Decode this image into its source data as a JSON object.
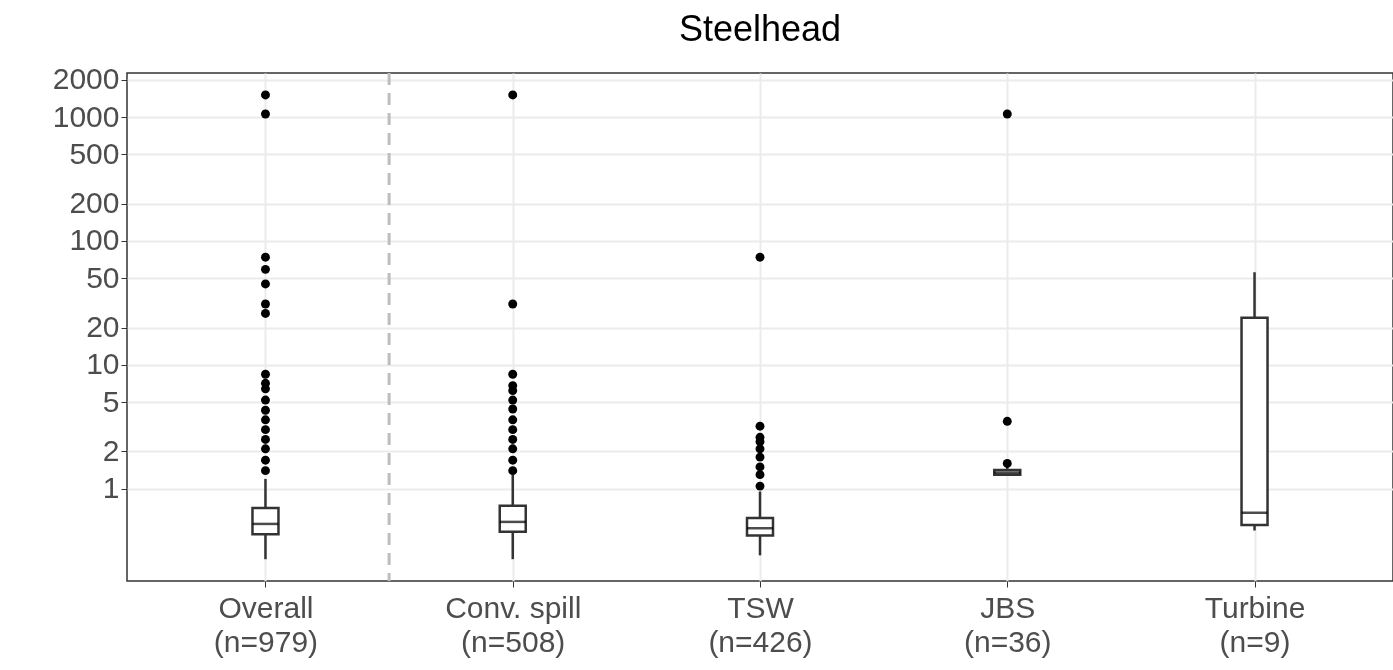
{
  "chart_data": {
    "type": "box",
    "title": "Steelhead",
    "categories": [
      "Overall\n(n=979)",
      "Conv. spill\n(n=508)",
      "TSW\n(n=426)",
      "JBS\n(n=36)",
      "Turbine\n(n=9)"
    ],
    "boxes": [
      {
        "low": 0.27,
        "q1": 0.43,
        "median": 0.52,
        "q3": 0.7,
        "high": 1.2,
        "outliers": [
          1510,
          1060,
          74,
          59,
          45,
          31,
          26,
          8.4,
          7.1,
          6.4,
          5.2,
          4.3,
          3.6,
          3.0,
          2.5,
          2.1,
          1.7,
          1.4
        ]
      },
      {
        "low": 0.27,
        "q1": 0.45,
        "median": 0.54,
        "q3": 0.73,
        "high": 1.3,
        "outliers": [
          1510,
          31,
          8.4,
          6.8,
          6.2,
          5.2,
          4.4,
          3.6,
          3.0,
          2.5,
          2.1,
          1.7,
          1.4
        ]
      },
      {
        "low": 0.29,
        "q1": 0.42,
        "median": 0.48,
        "q3": 0.58,
        "high": 0.95,
        "outliers": [
          74,
          3.2,
          2.6,
          2.4,
          2.1,
          1.8,
          1.5,
          1.3,
          1.05
        ]
      },
      {
        "low": 1.28,
        "q1": 1.3,
        "median": 1.35,
        "q3": 1.42,
        "high": 1.55,
        "outliers": [
          1060,
          3.5,
          1.6
        ]
      },
      {
        "low": 0.46,
        "q1": 0.51,
        "median": 0.64,
        "q3": 24,
        "high": 56
      }
    ],
    "ref_lines": [
      {
        "axis": "x",
        "value": "Overall\n(n=979)",
        "color": "#bdbdbd",
        "line_style": "dashed"
      }
    ],
    "log": true,
    "ylim": [
      0.18,
      2270
    ],
    "yticks": [
      1,
      2,
      5,
      10,
      20,
      50,
      100,
      200,
      500,
      1000,
      2000
    ],
    "grid": true
  }
}
